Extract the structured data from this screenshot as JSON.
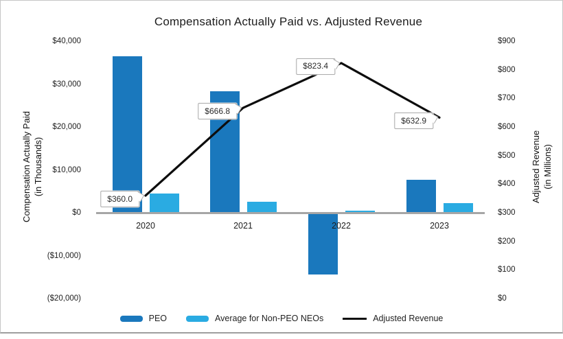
{
  "chart_data": {
    "type": "combo-bar-line",
    "title": "Compensation Actually Paid vs. Adjusted Revenue",
    "categories": [
      "2020",
      "2021",
      "2022",
      "2023"
    ],
    "bar_series": [
      {
        "name": "PEO",
        "color": "#1a78bd",
        "values": [
          36500,
          28400,
          -14300,
          7650
        ]
      },
      {
        "name": "Average for Non-PEO NEOs",
        "color": "#2aabe2",
        "values": [
          4500,
          2600,
          500,
          2250
        ]
      }
    ],
    "line_series": {
      "name": "Adjusted Revenue",
      "color": "#0d0d0d",
      "values": [
        360.0,
        666.8,
        823.4,
        632.9
      ],
      "point_labels": [
        "$360.0",
        "$666.8",
        "$823.4",
        "$632.9"
      ]
    },
    "left_axis": {
      "title": [
        "Compensation Actually Paid",
        "(in Thousands)"
      ],
      "min": -20000,
      "max": 40000,
      "ticks": [
        {
          "value": 40000,
          "label": "$40,000"
        },
        {
          "value": 30000,
          "label": "$30,000"
        },
        {
          "value": 20000,
          "label": "$20,000"
        },
        {
          "value": 10000,
          "label": "$10,000"
        },
        {
          "value": 0,
          "label": "$0"
        },
        {
          "value": -10000,
          "label": "($10,000)"
        },
        {
          "value": -20000,
          "label": "($20,000)"
        }
      ]
    },
    "right_axis": {
      "title": [
        "Adjusted Revenue",
        "(in Millions)"
      ],
      "min": 0,
      "max": 900,
      "ticks": [
        {
          "value": 900,
          "label": "$900"
        },
        {
          "value": 800,
          "label": "$800"
        },
        {
          "value": 700,
          "label": "$700"
        },
        {
          "value": 600,
          "label": "$600"
        },
        {
          "value": 500,
          "label": "$500"
        },
        {
          "value": 400,
          "label": "$400"
        },
        {
          "value": 300,
          "label": "$300"
        },
        {
          "value": 200,
          "label": "$200"
        },
        {
          "value": 100,
          "label": "$100"
        },
        {
          "value": 0,
          "label": "$0"
        }
      ]
    },
    "legend": [
      {
        "label": "PEO",
        "type": "bar",
        "color": "#1a78bd"
      },
      {
        "label": "Average for Non-PEO NEOs",
        "type": "bar",
        "color": "#2aabe2"
      },
      {
        "label": "Adjusted Revenue",
        "type": "line",
        "color": "#0d0d0d"
      }
    ],
    "grid": false,
    "legend_position": "bottom"
  }
}
